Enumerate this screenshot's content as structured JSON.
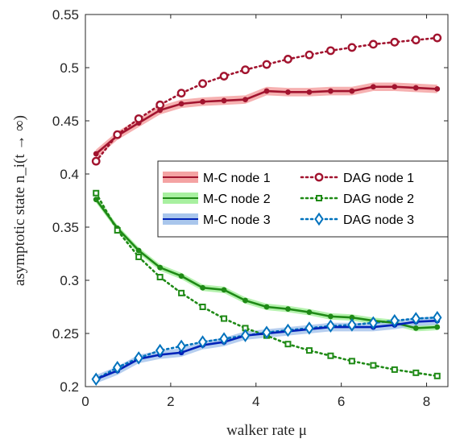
{
  "chart_data": {
    "type": "line",
    "title": "",
    "xlabel": "walker rate μ",
    "ylabel": "asymptotic state n_i(t → ∞)",
    "xlim": [
      0,
      8.5
    ],
    "ylim": [
      0.2,
      0.55
    ],
    "xticks": [
      0,
      2,
      4,
      6,
      8
    ],
    "yticks": [
      0.2,
      0.25,
      0.3,
      0.35,
      0.4,
      0.45,
      0.5,
      0.55
    ],
    "x": [
      0.25,
      0.75,
      1.25,
      1.75,
      2.25,
      2.75,
      3.25,
      3.75,
      4.25,
      4.75,
      5.25,
      5.75,
      6.25,
      6.75,
      7.25,
      7.75,
      8.25
    ],
    "grid": false,
    "legend": {
      "placement": "right-center",
      "columns": 2
    },
    "series": [
      {
        "name": "M-C node 1",
        "kind": "mc",
        "color": "#a2142f",
        "band": "#f4a3a3",
        "band_halfwidth": 0.004,
        "values": [
          0.419,
          0.436,
          0.448,
          0.46,
          0.466,
          0.468,
          0.469,
          0.47,
          0.478,
          0.477,
          0.477,
          0.478,
          0.478,
          0.482,
          0.482,
          0.481,
          0.48
        ]
      },
      {
        "name": "M-C node 2",
        "kind": "mc",
        "color": "#1f8a16",
        "band": "#a8f0a0",
        "band_halfwidth": 0.003,
        "values": [
          0.376,
          0.349,
          0.328,
          0.312,
          0.304,
          0.293,
          0.291,
          0.281,
          0.275,
          0.273,
          0.27,
          0.266,
          0.265,
          0.262,
          0.26,
          0.255,
          0.256
        ]
      },
      {
        "name": "M-C node 3",
        "kind": "mc",
        "color": "#0022b8",
        "band": "#a9c6ec",
        "band_halfwidth": 0.004,
        "values": [
          0.207,
          0.215,
          0.226,
          0.23,
          0.232,
          0.239,
          0.242,
          0.248,
          0.25,
          0.252,
          0.254,
          0.256,
          0.256,
          0.256,
          0.258,
          0.261,
          0.262
        ]
      },
      {
        "name": "DAG node 1",
        "kind": "dag",
        "marker": "circle",
        "color": "#a2142f",
        "values": [
          0.412,
          0.437,
          0.452,
          0.465,
          0.476,
          0.485,
          0.492,
          0.498,
          0.503,
          0.508,
          0.512,
          0.516,
          0.519,
          0.522,
          0.524,
          0.526,
          0.528
        ]
      },
      {
        "name": "DAG node 2",
        "kind": "dag",
        "marker": "square",
        "color": "#1f8a16",
        "values": [
          0.382,
          0.347,
          0.322,
          0.303,
          0.288,
          0.275,
          0.264,
          0.255,
          0.248,
          0.24,
          0.234,
          0.229,
          0.224,
          0.22,
          0.216,
          0.213,
          0.21
        ]
      },
      {
        "name": "DAG node 3",
        "kind": "dag",
        "marker": "diamond",
        "color": "#0072bd",
        "values": [
          0.207,
          0.218,
          0.227,
          0.234,
          0.238,
          0.242,
          0.245,
          0.248,
          0.251,
          0.253,
          0.255,
          0.257,
          0.258,
          0.26,
          0.262,
          0.264,
          0.265
        ]
      }
    ]
  }
}
